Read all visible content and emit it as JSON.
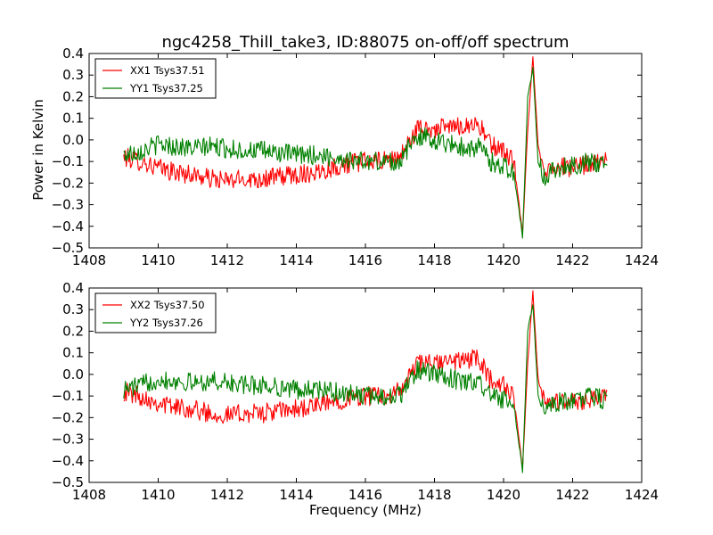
{
  "figure": {
    "title": "ngc4258_Thill_take3, ID:88075 on-off/off spectrum",
    "xlabel": "Frequency (MHz)",
    "ylabel": "Power in Kelvin"
  },
  "colors": {
    "red_series": "#ff0000",
    "green_series": "#008000",
    "axes": "#000000",
    "background": "#ffffff"
  },
  "chart_data": [
    {
      "type": "line",
      "title": "ngc4258_Thill_take3, ID:88075 on-off/off spectrum",
      "xlabel": "",
      "ylabel": "Power in Kelvin",
      "xlim": [
        1408,
        1424
      ],
      "ylim": [
        -0.5,
        0.4
      ],
      "grid": false,
      "legend_position": "top-left",
      "x_ticks": [
        "1408",
        "1410",
        "1412",
        "1414",
        "1416",
        "1418",
        "1420",
        "1422",
        "1424"
      ],
      "y_ticks": [
        "0.4",
        "0.3",
        "0.2",
        "0.1",
        "0.0",
        "−0.1",
        "−0.2",
        "−0.3",
        "−0.4",
        "−0.5"
      ],
      "x_range": [
        1409.0,
        1423.0
      ],
      "series": [
        {
          "name": "XX1 Tsys37.51",
          "color": "#ff0000",
          "points": [
            [
              1409.0,
              -0.08
            ],
            [
              1409.5,
              -0.1
            ],
            [
              1410.0,
              -0.13
            ],
            [
              1410.5,
              -0.15
            ],
            [
              1411.0,
              -0.16
            ],
            [
              1411.5,
              -0.18
            ],
            [
              1412.0,
              -0.19
            ],
            [
              1412.5,
              -0.18
            ],
            [
              1413.0,
              -0.18
            ],
            [
              1413.5,
              -0.17
            ],
            [
              1414.0,
              -0.16
            ],
            [
              1414.5,
              -0.15
            ],
            [
              1415.0,
              -0.13
            ],
            [
              1415.5,
              -0.11
            ],
            [
              1416.0,
              -0.1
            ],
            [
              1416.5,
              -0.1
            ],
            [
              1417.0,
              -0.08
            ],
            [
              1417.5,
              0.05
            ],
            [
              1418.0,
              0.05
            ],
            [
              1418.5,
              0.06
            ],
            [
              1419.0,
              0.07
            ],
            [
              1419.3,
              0.07
            ],
            [
              1419.6,
              -0.02
            ],
            [
              1420.0,
              -0.05
            ],
            [
              1420.3,
              -0.1
            ],
            [
              1420.55,
              -0.44
            ],
            [
              1420.7,
              0.05
            ],
            [
              1420.85,
              0.38
            ],
            [
              1421.0,
              -0.02
            ],
            [
              1421.2,
              -0.15
            ],
            [
              1421.5,
              -0.12
            ],
            [
              1422.0,
              -0.13
            ],
            [
              1422.5,
              -0.11
            ],
            [
              1423.0,
              -0.1
            ]
          ]
        },
        {
          "name": "YY1 Tsys37.25",
          "color": "#008000",
          "points": [
            [
              1409.0,
              -0.07
            ],
            [
              1409.5,
              -0.05
            ],
            [
              1410.0,
              -0.02
            ],
            [
              1410.5,
              -0.03
            ],
            [
              1411.0,
              -0.04
            ],
            [
              1411.5,
              -0.03
            ],
            [
              1412.0,
              -0.04
            ],
            [
              1412.5,
              -0.05
            ],
            [
              1413.0,
              -0.05
            ],
            [
              1413.5,
              -0.06
            ],
            [
              1414.0,
              -0.07
            ],
            [
              1414.5,
              -0.07
            ],
            [
              1415.0,
              -0.08
            ],
            [
              1415.5,
              -0.09
            ],
            [
              1416.0,
              -0.1
            ],
            [
              1416.5,
              -0.1
            ],
            [
              1417.0,
              -0.1
            ],
            [
              1417.5,
              0.02
            ],
            [
              1418.0,
              0.0
            ],
            [
              1418.5,
              -0.02
            ],
            [
              1419.0,
              -0.04
            ],
            [
              1419.3,
              -0.03
            ],
            [
              1419.6,
              -0.1
            ],
            [
              1420.0,
              -0.12
            ],
            [
              1420.3,
              -0.15
            ],
            [
              1420.55,
              -0.45
            ],
            [
              1420.7,
              0.2
            ],
            [
              1420.85,
              0.33
            ],
            [
              1421.0,
              -0.1
            ],
            [
              1421.2,
              -0.18
            ],
            [
              1421.5,
              -0.13
            ],
            [
              1422.0,
              -0.12
            ],
            [
              1422.5,
              -0.1
            ],
            [
              1423.0,
              -0.12
            ]
          ]
        }
      ]
    },
    {
      "type": "line",
      "title": "",
      "xlabel": "Frequency (MHz)",
      "ylabel": "",
      "xlim": [
        1408,
        1424
      ],
      "ylim": [
        -0.5,
        0.4
      ],
      "grid": false,
      "legend_position": "top-left",
      "x_ticks": [
        "1408",
        "1410",
        "1412",
        "1414",
        "1416",
        "1418",
        "1420",
        "1422",
        "1424"
      ],
      "y_ticks": [
        "0.4",
        "0.3",
        "0.2",
        "0.1",
        "0.0",
        "−0.1",
        "−0.2",
        "−0.3",
        "−0.4",
        "−0.5"
      ],
      "x_range": [
        1409.0,
        1423.0
      ],
      "series": [
        {
          "name": "XX2 Tsys37.50",
          "color": "#ff0000",
          "points": [
            [
              1409.0,
              -0.08
            ],
            [
              1409.5,
              -0.1
            ],
            [
              1410.0,
              -0.13
            ],
            [
              1410.5,
              -0.15
            ],
            [
              1411.0,
              -0.16
            ],
            [
              1411.5,
              -0.18
            ],
            [
              1412.0,
              -0.19
            ],
            [
              1412.5,
              -0.18
            ],
            [
              1413.0,
              -0.18
            ],
            [
              1413.5,
              -0.17
            ],
            [
              1414.0,
              -0.16
            ],
            [
              1414.5,
              -0.15
            ],
            [
              1415.0,
              -0.13
            ],
            [
              1415.5,
              -0.11
            ],
            [
              1416.0,
              -0.1
            ],
            [
              1416.5,
              -0.1
            ],
            [
              1417.0,
              -0.08
            ],
            [
              1417.5,
              0.05
            ],
            [
              1418.0,
              0.05
            ],
            [
              1418.5,
              0.06
            ],
            [
              1419.0,
              0.07
            ],
            [
              1419.3,
              0.07
            ],
            [
              1419.6,
              -0.02
            ],
            [
              1420.0,
              -0.05
            ],
            [
              1420.3,
              -0.1
            ],
            [
              1420.55,
              -0.44
            ],
            [
              1420.7,
              0.05
            ],
            [
              1420.85,
              0.38
            ],
            [
              1421.0,
              -0.02
            ],
            [
              1421.2,
              -0.15
            ],
            [
              1421.5,
              -0.12
            ],
            [
              1422.0,
              -0.13
            ],
            [
              1422.5,
              -0.11
            ],
            [
              1423.0,
              -0.1
            ]
          ]
        },
        {
          "name": "YY2 Tsys37.26",
          "color": "#008000",
          "points": [
            [
              1409.0,
              -0.07
            ],
            [
              1409.5,
              -0.05
            ],
            [
              1410.0,
              -0.02
            ],
            [
              1410.5,
              -0.03
            ],
            [
              1411.0,
              -0.04
            ],
            [
              1411.5,
              -0.03
            ],
            [
              1412.0,
              -0.04
            ],
            [
              1412.5,
              -0.05
            ],
            [
              1413.0,
              -0.05
            ],
            [
              1413.5,
              -0.06
            ],
            [
              1414.0,
              -0.07
            ],
            [
              1414.5,
              -0.07
            ],
            [
              1415.0,
              -0.08
            ],
            [
              1415.5,
              -0.09
            ],
            [
              1416.0,
              -0.1
            ],
            [
              1416.5,
              -0.1
            ],
            [
              1417.0,
              -0.1
            ],
            [
              1417.5,
              0.02
            ],
            [
              1418.0,
              0.0
            ],
            [
              1418.5,
              -0.02
            ],
            [
              1419.0,
              -0.04
            ],
            [
              1419.3,
              -0.03
            ],
            [
              1419.6,
              -0.1
            ],
            [
              1420.0,
              -0.12
            ],
            [
              1420.3,
              -0.15
            ],
            [
              1420.55,
              -0.45
            ],
            [
              1420.7,
              0.2
            ],
            [
              1420.85,
              0.33
            ],
            [
              1421.0,
              -0.1
            ],
            [
              1421.2,
              -0.18
            ],
            [
              1421.5,
              -0.13
            ],
            [
              1422.0,
              -0.12
            ],
            [
              1422.5,
              -0.1
            ],
            [
              1423.0,
              -0.12
            ]
          ]
        }
      ]
    }
  ]
}
